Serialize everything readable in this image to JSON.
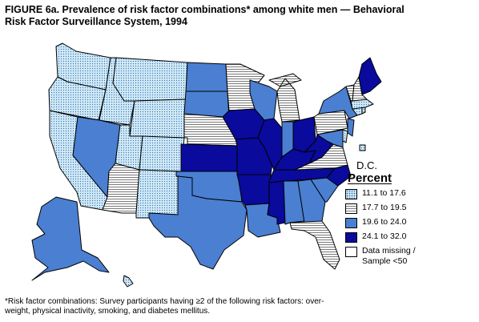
{
  "title": {
    "line1": "FIGURE 6a. Prevalence of risk factor combinations* among white men — Behavioral",
    "line2": "Risk Factor Surveillance System, 1994"
  },
  "map": {
    "dc_label": "D.C.",
    "dc_category": "light",
    "categories": {
      "light": "#cfe8f4",
      "horiz": "#ffffff",
      "mid": "#4a7fd1",
      "dark": "#0a0a9c",
      "missing": "#ffffff"
    },
    "states": {
      "WA": "light",
      "OR": "light",
      "CA": "light",
      "ID": "light",
      "NV": "mid",
      "MT": "light",
      "WY": "light",
      "UT": "light",
      "CO": "light",
      "AZ": "horiz",
      "NM": "light",
      "ND": "mid",
      "SD": "mid",
      "NE": "horiz",
      "KS": "dark",
      "OK": "mid",
      "TX": "mid",
      "MN": "horiz",
      "IA": "dark",
      "MO": "dark",
      "AR": "dark",
      "LA": "mid",
      "WI": "mid",
      "IL": "dark",
      "MI": "horiz",
      "IN": "mid",
      "OH": "dark",
      "KY": "dark",
      "TN": "dark",
      "MS": "dark",
      "AL": "mid",
      "GA": "mid",
      "FL": "horiz",
      "SC": "mid",
      "NC": "dark",
      "VA": "horiz",
      "WV": "dark",
      "PA": "horiz",
      "NY": "mid",
      "VT": "horiz",
      "NH": "horiz",
      "ME": "dark",
      "MA": "light",
      "CT": "light",
      "RI": "light",
      "NJ": "mid",
      "DE": "light",
      "MD": "mid",
      "AK": "mid",
      "HI": "light"
    }
  },
  "legend": {
    "title": "Percent",
    "items": [
      {
        "key": "light",
        "label": "11.1 to 17.6"
      },
      {
        "key": "horiz",
        "label": "17.7 to 19.5"
      },
      {
        "key": "mid",
        "label": "19.6 to 24.0"
      },
      {
        "key": "dark",
        "label": "24.1 to 32.0"
      },
      {
        "key": "missing",
        "label": "Data missing /",
        "label2": "Sample <50"
      }
    ]
  },
  "footnote": {
    "line1": "*Risk factor combinations: Survey participants having ≥2 of the following risk factors: over-",
    "line2": "weight, physical inactivity, smoking, and diabetes mellitus."
  }
}
